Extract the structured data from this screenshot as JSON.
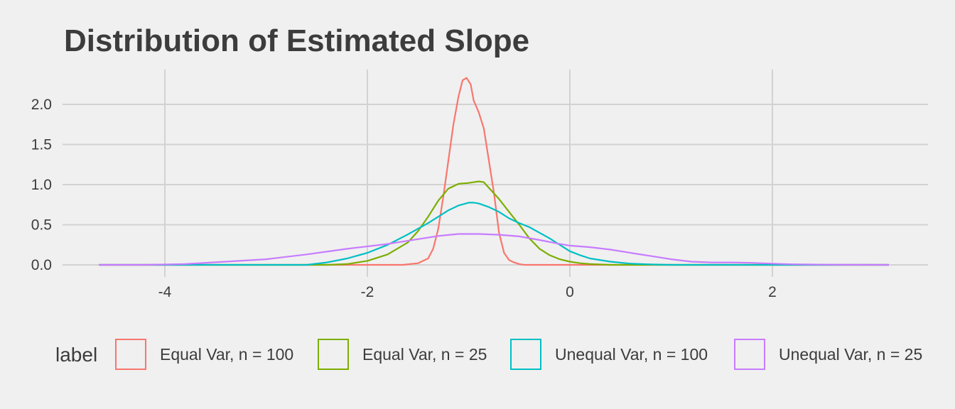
{
  "chart_data": {
    "type": "line",
    "title": "Distribution of Estimated Slope",
    "xlabel": "",
    "ylabel": "",
    "xlim": [
      -4.85,
      3.65
    ],
    "ylim": [
      0,
      2.4
    ],
    "x_ticks": [
      -4,
      -2,
      0,
      2
    ],
    "y_ticks": [
      0,
      0.5,
      1,
      1.5,
      2
    ],
    "x_tick_labels": [
      "-4",
      "-2",
      "0",
      "2"
    ],
    "y_tick_labels": [
      "0.0",
      "0.5",
      "1.0",
      "1.5",
      "2.0"
    ],
    "grid": true,
    "legend": {
      "title": "label",
      "position": "bottom",
      "entries": [
        "Equal Var, n = 100",
        "Equal Var, n = 25",
        "Unequal Var, n = 100",
        "Unequal Var, n = 25"
      ]
    },
    "series": [
      {
        "name": "Equal Var, n = 100",
        "color": "#F8766D",
        "points": [
          [
            -4.65,
            0
          ],
          [
            -1.65,
            0
          ],
          [
            -1.5,
            0.02
          ],
          [
            -1.4,
            0.08
          ],
          [
            -1.35,
            0.2
          ],
          [
            -1.3,
            0.45
          ],
          [
            -1.25,
            0.85
          ],
          [
            -1.2,
            1.3
          ],
          [
            -1.15,
            1.75
          ],
          [
            -1.1,
            2.1
          ],
          [
            -1.06,
            2.3
          ],
          [
            -1.02,
            2.33
          ],
          [
            -0.98,
            2.25
          ],
          [
            -0.95,
            2.05
          ],
          [
            -0.9,
            1.9
          ],
          [
            -0.85,
            1.7
          ],
          [
            -0.8,
            1.3
          ],
          [
            -0.75,
            0.9
          ],
          [
            -0.7,
            0.4
          ],
          [
            -0.65,
            0.15
          ],
          [
            -0.6,
            0.06
          ],
          [
            -0.55,
            0.03
          ],
          [
            -0.5,
            0.01
          ],
          [
            -0.45,
            0
          ],
          [
            3.15,
            0
          ]
        ]
      },
      {
        "name": "Equal Var, n = 25",
        "color": "#7CAE00",
        "points": [
          [
            -4.65,
            0
          ],
          [
            -2.4,
            0
          ],
          [
            -2.2,
            0.01
          ],
          [
            -2.0,
            0.05
          ],
          [
            -1.8,
            0.13
          ],
          [
            -1.6,
            0.28
          ],
          [
            -1.5,
            0.42
          ],
          [
            -1.4,
            0.6
          ],
          [
            -1.3,
            0.8
          ],
          [
            -1.2,
            0.95
          ],
          [
            -1.1,
            1.01
          ],
          [
            -1.0,
            1.02
          ],
          [
            -0.95,
            1.03
          ],
          [
            -0.9,
            1.04
          ],
          [
            -0.85,
            1.03
          ],
          [
            -0.8,
            0.96
          ],
          [
            -0.7,
            0.82
          ],
          [
            -0.6,
            0.66
          ],
          [
            -0.5,
            0.5
          ],
          [
            -0.4,
            0.33
          ],
          [
            -0.3,
            0.2
          ],
          [
            -0.2,
            0.12
          ],
          [
            -0.1,
            0.07
          ],
          [
            0.0,
            0.04
          ],
          [
            0.1,
            0.02
          ],
          [
            0.2,
            0.01
          ],
          [
            0.4,
            0
          ],
          [
            3.15,
            0
          ]
        ]
      },
      {
        "name": "Unequal Var, n = 100",
        "color": "#00BFC4",
        "points": [
          [
            -4.65,
            0
          ],
          [
            -2.6,
            0
          ],
          [
            -2.4,
            0.03
          ],
          [
            -2.2,
            0.08
          ],
          [
            -2.0,
            0.15
          ],
          [
            -1.8,
            0.25
          ],
          [
            -1.6,
            0.38
          ],
          [
            -1.4,
            0.52
          ],
          [
            -1.3,
            0.6
          ],
          [
            -1.2,
            0.68
          ],
          [
            -1.1,
            0.74
          ],
          [
            -1.0,
            0.775
          ],
          [
            -0.95,
            0.775
          ],
          [
            -0.9,
            0.765
          ],
          [
            -0.8,
            0.72
          ],
          [
            -0.7,
            0.66
          ],
          [
            -0.6,
            0.58
          ],
          [
            -0.5,
            0.52
          ],
          [
            -0.4,
            0.47
          ],
          [
            -0.3,
            0.4
          ],
          [
            -0.2,
            0.33
          ],
          [
            -0.1,
            0.25
          ],
          [
            0.0,
            0.17
          ],
          [
            0.1,
            0.12
          ],
          [
            0.2,
            0.08
          ],
          [
            0.4,
            0.04
          ],
          [
            0.6,
            0.015
          ],
          [
            0.8,
            0.005
          ],
          [
            1.0,
            0
          ],
          [
            3.15,
            0
          ]
        ]
      },
      {
        "name": "Unequal Var, n = 25",
        "color": "#C77CFF",
        "points": [
          [
            -4.65,
            0
          ],
          [
            -4.2,
            0
          ],
          [
            -3.8,
            0.01
          ],
          [
            -3.4,
            0.04
          ],
          [
            -3.0,
            0.07
          ],
          [
            -2.6,
            0.13
          ],
          [
            -2.2,
            0.2
          ],
          [
            -1.8,
            0.26
          ],
          [
            -1.5,
            0.32
          ],
          [
            -1.3,
            0.36
          ],
          [
            -1.1,
            0.385
          ],
          [
            -0.9,
            0.385
          ],
          [
            -0.7,
            0.375
          ],
          [
            -0.5,
            0.355
          ],
          [
            -0.3,
            0.31
          ],
          [
            -0.1,
            0.26
          ],
          [
            0.0,
            0.24
          ],
          [
            0.2,
            0.22
          ],
          [
            0.4,
            0.19
          ],
          [
            0.6,
            0.15
          ],
          [
            0.8,
            0.11
          ],
          [
            1.0,
            0.07
          ],
          [
            1.2,
            0.04
          ],
          [
            1.4,
            0.03
          ],
          [
            1.6,
            0.03
          ],
          [
            1.8,
            0.025
          ],
          [
            2.0,
            0.015
          ],
          [
            2.2,
            0.007
          ],
          [
            2.5,
            0.003
          ],
          [
            2.8,
            0.001
          ],
          [
            3.15,
            0
          ]
        ]
      }
    ]
  }
}
